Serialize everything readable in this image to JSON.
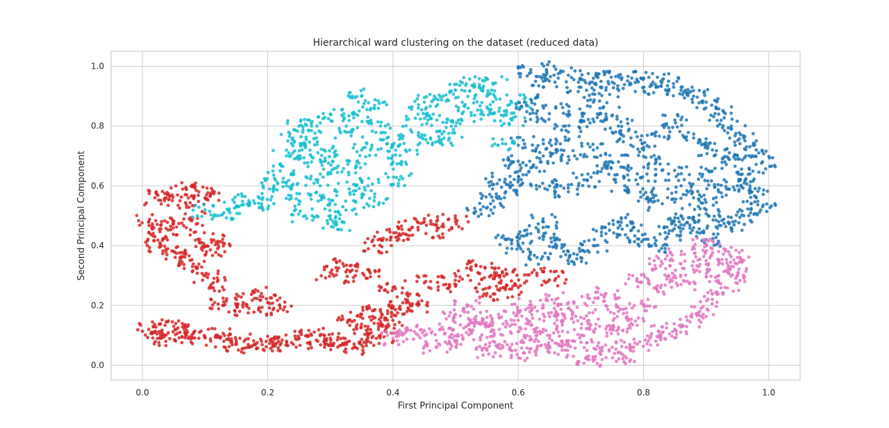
{
  "chart_data": {
    "type": "scatter",
    "title": "Hierarchical ward clustering on the dataset (reduced data)",
    "xlabel": "First Principal Component",
    "ylabel": "Second Principal Component",
    "xlim": [
      -0.05,
      1.05
    ],
    "ylim": [
      -0.05,
      1.05
    ],
    "xticks": [
      "0.0",
      "0.2",
      "0.4",
      "0.6",
      "0.8",
      "1.0"
    ],
    "yticks": [
      "0.0",
      "0.2",
      "0.4",
      "0.6",
      "0.8",
      "1.0"
    ],
    "grid": true,
    "legend": "none",
    "series": [
      {
        "color": "#d62728",
        "points": [
          [
            0.01,
            0.12
          ],
          [
            0.02,
            0.11
          ],
          [
            0.03,
            0.09
          ],
          [
            0.05,
            0.13
          ],
          [
            0.06,
            0.11
          ],
          [
            0.07,
            0.1
          ],
          [
            0.09,
            0.09
          ],
          [
            0.12,
            0.1
          ],
          [
            0.13,
            0.08
          ],
          [
            0.15,
            0.07
          ],
          [
            0.17,
            0.06
          ],
          [
            0.19,
            0.08
          ],
          [
            0.21,
            0.07
          ],
          [
            0.23,
            0.08
          ],
          [
            0.25,
            0.09
          ],
          [
            0.27,
            0.1
          ],
          [
            0.28,
            0.08
          ],
          [
            0.3,
            0.09
          ],
          [
            0.32,
            0.07
          ],
          [
            0.34,
            0.06
          ],
          [
            0.36,
            0.08
          ],
          [
            0.38,
            0.1
          ],
          [
            0.33,
            0.15
          ],
          [
            0.35,
            0.17
          ],
          [
            0.37,
            0.14
          ],
          [
            0.36,
            0.12
          ],
          [
            0.13,
            0.2
          ],
          [
            0.15,
            0.22
          ],
          [
            0.17,
            0.19
          ],
          [
            0.19,
            0.24
          ],
          [
            0.2,
            0.21
          ],
          [
            0.22,
            0.19
          ],
          [
            0.11,
            0.27
          ],
          [
            0.1,
            0.3
          ],
          [
            0.08,
            0.33
          ],
          [
            0.06,
            0.36
          ],
          [
            0.05,
            0.38
          ],
          [
            0.03,
            0.4
          ],
          [
            0.02,
            0.43
          ],
          [
            0.1,
            0.4
          ],
          [
            0.11,
            0.42
          ],
          [
            0.12,
            0.39
          ],
          [
            0.01,
            0.48
          ],
          [
            0.03,
            0.47
          ],
          [
            0.07,
            0.46
          ],
          [
            0.08,
            0.49
          ],
          [
            0.02,
            0.56
          ],
          [
            0.04,
            0.57
          ],
          [
            0.06,
            0.55
          ],
          [
            0.07,
            0.59
          ],
          [
            0.09,
            0.58
          ],
          [
            0.1,
            0.56
          ],
          [
            0.3,
            0.31
          ],
          [
            0.32,
            0.34
          ],
          [
            0.34,
            0.3
          ],
          [
            0.36,
            0.32
          ],
          [
            0.37,
            0.4
          ],
          [
            0.39,
            0.42
          ],
          [
            0.41,
            0.44
          ],
          [
            0.43,
            0.46
          ],
          [
            0.45,
            0.48
          ],
          [
            0.47,
            0.45
          ],
          [
            0.5,
            0.48
          ],
          [
            0.4,
            0.26
          ],
          [
            0.42,
            0.22
          ],
          [
            0.44,
            0.2
          ],
          [
            0.46,
            0.28
          ],
          [
            0.49,
            0.27
          ],
          [
            0.52,
            0.3
          ],
          [
            0.54,
            0.33
          ],
          [
            0.56,
            0.29
          ],
          [
            0.58,
            0.32
          ],
          [
            0.55,
            0.24
          ],
          [
            0.57,
            0.25
          ],
          [
            0.6,
            0.26
          ],
          [
            0.63,
            0.3
          ],
          [
            0.66,
            0.29
          ],
          [
            0.4,
            0.15
          ],
          [
            0.38,
            0.18
          ],
          [
            0.41,
            0.19
          ]
        ]
      },
      {
        "color": "#17becf",
        "points": [
          [
            0.1,
            0.52
          ],
          [
            0.13,
            0.51
          ],
          [
            0.15,
            0.53
          ],
          [
            0.17,
            0.55
          ],
          [
            0.19,
            0.54
          ],
          [
            0.21,
            0.6
          ],
          [
            0.22,
            0.65
          ],
          [
            0.23,
            0.7
          ],
          [
            0.24,
            0.76
          ],
          [
            0.25,
            0.8
          ],
          [
            0.26,
            0.74
          ],
          [
            0.27,
            0.68
          ],
          [
            0.28,
            0.62
          ],
          [
            0.29,
            0.56
          ],
          [
            0.3,
            0.5
          ],
          [
            0.31,
            0.47
          ],
          [
            0.32,
            0.53
          ],
          [
            0.33,
            0.59
          ],
          [
            0.34,
            0.66
          ],
          [
            0.35,
            0.72
          ],
          [
            0.33,
            0.78
          ],
          [
            0.34,
            0.84
          ],
          [
            0.35,
            0.9
          ],
          [
            0.37,
            0.86
          ],
          [
            0.38,
            0.8
          ],
          [
            0.39,
            0.74
          ],
          [
            0.4,
            0.68
          ],
          [
            0.41,
            0.62
          ],
          [
            0.42,
            0.72
          ],
          [
            0.43,
            0.78
          ],
          [
            0.44,
            0.84
          ],
          [
            0.45,
            0.88
          ],
          [
            0.47,
            0.82
          ],
          [
            0.49,
            0.76
          ],
          [
            0.5,
            0.8
          ],
          [
            0.48,
            0.9
          ],
          [
            0.51,
            0.92
          ],
          [
            0.53,
            0.94
          ],
          [
            0.55,
            0.9
          ],
          [
            0.57,
            0.86
          ],
          [
            0.59,
            0.82
          ],
          [
            0.6,
            0.88
          ],
          [
            0.56,
            0.94
          ],
          [
            0.54,
            0.84
          ],
          [
            0.36,
            0.6
          ],
          [
            0.37,
            0.55
          ],
          [
            0.29,
            0.72
          ],
          [
            0.27,
            0.8
          ],
          [
            0.3,
            0.84
          ],
          [
            0.23,
            0.6
          ],
          [
            0.25,
            0.55
          ],
          [
            0.26,
            0.5
          ],
          [
            0.31,
            0.66
          ],
          [
            0.46,
            0.76
          ],
          [
            0.52,
            0.86
          ],
          [
            0.58,
            0.74
          ]
        ]
      },
      {
        "color": "#1f77b4",
        "points": [
          [
            0.62,
            0.98
          ],
          [
            0.64,
            0.95
          ],
          [
            0.66,
            0.99
          ],
          [
            0.68,
            0.97
          ],
          [
            0.7,
            0.93
          ],
          [
            0.72,
            0.96
          ],
          [
            0.74,
            0.92
          ],
          [
            0.76,
            0.97
          ],
          [
            0.78,
            0.94
          ],
          [
            0.8,
            0.96
          ],
          [
            0.82,
            0.93
          ],
          [
            0.84,
            0.95
          ],
          [
            0.86,
            0.92
          ],
          [
            0.88,
            0.9
          ],
          [
            0.9,
            0.88
          ],
          [
            0.92,
            0.84
          ],
          [
            0.94,
            0.8
          ],
          [
            0.96,
            0.76
          ],
          [
            0.98,
            0.72
          ],
          [
            0.99,
            0.68
          ],
          [
            0.97,
            0.64
          ],
          [
            0.95,
            0.6
          ],
          [
            0.98,
            0.56
          ],
          [
            0.99,
            0.53
          ],
          [
            0.96,
            0.5
          ],
          [
            0.94,
            0.46
          ],
          [
            0.92,
            0.48
          ],
          [
            0.9,
            0.52
          ],
          [
            0.88,
            0.56
          ],
          [
            0.86,
            0.6
          ],
          [
            0.84,
            0.64
          ],
          [
            0.82,
            0.68
          ],
          [
            0.8,
            0.72
          ],
          [
            0.78,
            0.76
          ],
          [
            0.76,
            0.8
          ],
          [
            0.74,
            0.84
          ],
          [
            0.72,
            0.88
          ],
          [
            0.7,
            0.82
          ],
          [
            0.68,
            0.78
          ],
          [
            0.66,
            0.74
          ],
          [
            0.64,
            0.7
          ],
          [
            0.62,
            0.66
          ],
          [
            0.6,
            0.62
          ],
          [
            0.58,
            0.58
          ],
          [
            0.56,
            0.55
          ],
          [
            0.54,
            0.52
          ],
          [
            0.65,
            0.6
          ],
          [
            0.68,
            0.58
          ],
          [
            0.71,
            0.62
          ],
          [
            0.74,
            0.66
          ],
          [
            0.77,
            0.6
          ],
          [
            0.8,
            0.57
          ],
          [
            0.83,
            0.54
          ],
          [
            0.86,
            0.5
          ],
          [
            0.88,
            0.46
          ],
          [
            0.9,
            0.42
          ],
          [
            0.6,
            0.4
          ],
          [
            0.62,
            0.44
          ],
          [
            0.64,
            0.48
          ],
          [
            0.66,
            0.42
          ],
          [
            0.68,
            0.38
          ],
          [
            0.7,
            0.36
          ],
          [
            0.72,
            0.4
          ],
          [
            0.74,
            0.44
          ],
          [
            0.76,
            0.48
          ],
          [
            0.78,
            0.45
          ],
          [
            0.8,
            0.42
          ],
          [
            0.82,
            0.4
          ],
          [
            0.84,
            0.44
          ],
          [
            0.86,
            0.47
          ],
          [
            0.63,
            0.36
          ],
          [
            0.58,
            0.42
          ],
          [
            0.61,
            0.88
          ],
          [
            0.63,
            0.83
          ],
          [
            0.66,
            0.86
          ],
          [
            0.69,
            0.7
          ],
          [
            0.72,
            0.72
          ],
          [
            0.76,
            0.68
          ],
          [
            0.79,
            0.64
          ],
          [
            0.82,
            0.78
          ],
          [
            0.85,
            0.82
          ],
          [
            0.88,
            0.76
          ],
          [
            0.91,
            0.72
          ],
          [
            0.93,
            0.68
          ],
          [
            0.89,
            0.64
          ],
          [
            0.92,
            0.58
          ],
          [
            0.95,
            0.7
          ],
          [
            0.97,
            0.6
          ],
          [
            0.57,
            0.62
          ],
          [
            0.59,
            0.68
          ],
          [
            0.61,
            0.74
          ]
        ]
      },
      {
        "color": "#e377c2",
        "points": [
          [
            0.4,
            0.09
          ],
          [
            0.42,
            0.11
          ],
          [
            0.44,
            0.1
          ],
          [
            0.47,
            0.06
          ],
          [
            0.49,
            0.08
          ],
          [
            0.51,
            0.1
          ],
          [
            0.53,
            0.13
          ],
          [
            0.55,
            0.16
          ],
          [
            0.57,
            0.12
          ],
          [
            0.59,
            0.07
          ],
          [
            0.61,
            0.04
          ],
          [
            0.63,
            0.06
          ],
          [
            0.65,
            0.09
          ],
          [
            0.67,
            0.05
          ],
          [
            0.69,
            0.08
          ],
          [
            0.71,
            0.02
          ],
          [
            0.73,
            0.04
          ],
          [
            0.75,
            0.06
          ],
          [
            0.77,
            0.03
          ],
          [
            0.79,
            0.07
          ],
          [
            0.81,
            0.09
          ],
          [
            0.83,
            0.11
          ],
          [
            0.5,
            0.17
          ],
          [
            0.52,
            0.2
          ],
          [
            0.54,
            0.14
          ],
          [
            0.58,
            0.18
          ],
          [
            0.6,
            0.15
          ],
          [
            0.62,
            0.2
          ],
          [
            0.64,
            0.17
          ],
          [
            0.66,
            0.22
          ],
          [
            0.68,
            0.19
          ],
          [
            0.7,
            0.16
          ],
          [
            0.72,
            0.21
          ],
          [
            0.74,
            0.24
          ],
          [
            0.76,
            0.18
          ],
          [
            0.78,
            0.14
          ],
          [
            0.8,
            0.2
          ],
          [
            0.82,
            0.26
          ],
          [
            0.84,
            0.3
          ],
          [
            0.86,
            0.27
          ],
          [
            0.88,
            0.32
          ],
          [
            0.9,
            0.35
          ],
          [
            0.92,
            0.38
          ],
          [
            0.94,
            0.33
          ],
          [
            0.95,
            0.3
          ],
          [
            0.93,
            0.26
          ],
          [
            0.91,
            0.22
          ],
          [
            0.89,
            0.18
          ],
          [
            0.87,
            0.15
          ],
          [
            0.85,
            0.12
          ],
          [
            0.76,
            0.12
          ],
          [
            0.7,
            0.1
          ],
          [
            0.64,
            0.12
          ],
          [
            0.56,
            0.08
          ],
          [
            0.48,
            0.12
          ],
          [
            0.86,
            0.37
          ],
          [
            0.9,
            0.4
          ],
          [
            0.83,
            0.34
          ],
          [
            0.79,
            0.28
          ],
          [
            0.73,
            0.13
          ],
          [
            0.67,
            0.15
          ],
          [
            0.61,
            0.1
          ],
          [
            0.55,
            0.05
          ],
          [
            0.95,
            0.36
          ],
          [
            0.92,
            0.3
          ]
        ]
      }
    ]
  }
}
